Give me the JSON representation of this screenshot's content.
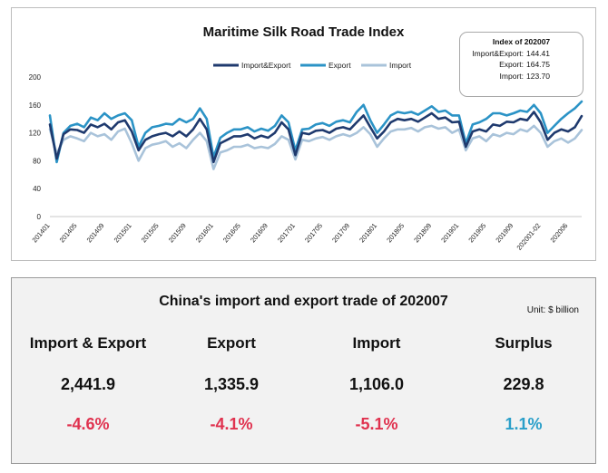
{
  "chart_data": {
    "type": "line",
    "title": "Maritime Silk Road Trade Index",
    "ylim": [
      0,
      200
    ],
    "yticks": [
      0,
      40,
      80,
      120,
      160,
      200
    ],
    "x_tick_labels": [
      "201401",
      "201405",
      "201409",
      "201501",
      "201505",
      "201509",
      "201601",
      "201605",
      "201609",
      "201701",
      "201705",
      "201709",
      "201801",
      "201805",
      "201809",
      "201901",
      "201905",
      "201909",
      "202001-02",
      "202006"
    ],
    "legend_position": "top",
    "series": [
      {
        "name": "Import&Export",
        "color": "#1f3a6e",
        "values": [
          132,
          83,
          118,
          125,
          124,
          120,
          132,
          128,
          133,
          125,
          135,
          138,
          122,
          95,
          110,
          115,
          118,
          120,
          115,
          122,
          115,
          125,
          140,
          125,
          78,
          105,
          110,
          115,
          115,
          118,
          112,
          116,
          113,
          120,
          135,
          125,
          88,
          120,
          118,
          123,
          124,
          120,
          126,
          128,
          125,
          135,
          145,
          128,
          112,
          122,
          135,
          140,
          138,
          140,
          136,
          142,
          148,
          140,
          142,
          135,
          136,
          100,
          122,
          125,
          122,
          132,
          130,
          136,
          135,
          140,
          138,
          150,
          135,
          110,
          120,
          125,
          122,
          128,
          144
        ]
      },
      {
        "name": "Export",
        "color": "#2b93c6",
        "values": [
          145,
          78,
          120,
          130,
          133,
          128,
          142,
          138,
          148,
          140,
          145,
          148,
          138,
          100,
          120,
          128,
          130,
          133,
          132,
          140,
          135,
          140,
          155,
          140,
          85,
          113,
          120,
          125,
          125,
          128,
          122,
          126,
          123,
          130,
          145,
          135,
          95,
          125,
          126,
          132,
          134,
          130,
          136,
          138,
          135,
          150,
          160,
          138,
          120,
          132,
          145,
          150,
          148,
          150,
          146,
          152,
          158,
          150,
          152,
          145,
          145,
          105,
          132,
          135,
          140,
          148,
          148,
          145,
          148,
          152,
          150,
          160,
          148,
          120,
          130,
          140,
          148,
          155,
          165
        ]
      },
      {
        "name": "Import",
        "color": "#a9c3da",
        "values": [
          125,
          90,
          110,
          115,
          112,
          108,
          120,
          115,
          118,
          110,
          122,
          126,
          105,
          80,
          98,
          103,
          105,
          108,
          100,
          105,
          98,
          110,
          120,
          108,
          68,
          92,
          95,
          100,
          100,
          103,
          98,
          100,
          98,
          104,
          115,
          110,
          82,
          110,
          108,
          112,
          114,
          110,
          115,
          118,
          115,
          120,
          128,
          118,
          100,
          112,
          122,
          125,
          125,
          127,
          122,
          128,
          130,
          126,
          128,
          120,
          125,
          95,
          112,
          115,
          108,
          118,
          115,
          120,
          118,
          125,
          122,
          130,
          120,
          100,
          108,
          112,
          106,
          112,
          124
        ]
      }
    ]
  },
  "callout": {
    "title": "Index of 202007",
    "rows": [
      {
        "label": "Import&Export:",
        "value": "144.41"
      },
      {
        "label": "Export:",
        "value": "164.75"
      },
      {
        "label": "Import:",
        "value": "123.70"
      }
    ]
  },
  "table": {
    "title": "China's import and export trade of 202007",
    "unit": "Unit: $ billion",
    "columns": [
      {
        "header": "Import & Export",
        "value": "2,441.9",
        "change": "-4.6%",
        "change_color": "#e0324f"
      },
      {
        "header": "Export",
        "value": "1,335.9",
        "change": "-4.1%",
        "change_color": "#e0324f"
      },
      {
        "header": "Import",
        "value": "1,106.0",
        "change": "-5.1%",
        "change_color": "#e0324f"
      },
      {
        "header": "Surplus",
        "value": "229.8",
        "change": "1.1%",
        "change_color": "#2a9fc9"
      }
    ]
  }
}
